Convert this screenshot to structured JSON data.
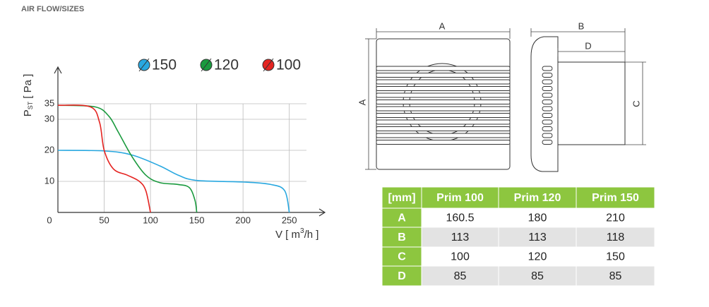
{
  "heading": "AIR FLOW/SIZES",
  "chart_data": {
    "type": "line",
    "x_label": {
      "pre": "V [ m",
      "sup": "3",
      "post": "/h ]"
    },
    "y_label": {
      "main": "P",
      "sub": "ST",
      "unit": "[ Pa ]"
    },
    "series": [
      {
        "name": "150",
        "color": "#29a8e0",
        "x": [
          0,
          50,
          80,
          110,
          130,
          150,
          200,
          230,
          245,
          250
        ],
        "values": [
          20,
          19.8,
          18.5,
          15,
          12,
          10.3,
          9.8,
          9,
          7,
          0
        ]
      },
      {
        "name": "120",
        "color": "#1a9a3e",
        "x": [
          0,
          40,
          55,
          65,
          80,
          95,
          110,
          130,
          142,
          148,
          150
        ],
        "values": [
          34.5,
          34,
          31,
          26,
          18,
          12,
          9.6,
          9,
          8,
          4,
          0
        ]
      },
      {
        "name": "100",
        "color": "#e52421",
        "x": [
          0,
          35,
          45,
          50,
          60,
          75,
          88,
          95,
          100
        ],
        "values": [
          34.5,
          34,
          29,
          20,
          14,
          12,
          10,
          7,
          0
        ]
      }
    ],
    "xlim": [
      0,
      280
    ],
    "ylim": [
      0,
      45
    ],
    "xticks": [
      0,
      50,
      100,
      150,
      200,
      250
    ],
    "yticks": [
      10,
      20,
      30,
      35
    ],
    "grid": true
  },
  "drawing": {
    "front_width": "A",
    "front_height": "A",
    "side_depth": "B",
    "body_depth": "D",
    "body_height": "C"
  },
  "table": {
    "header": [
      "[mm]",
      "Prim 100",
      "Prim 120",
      "Prim 150"
    ],
    "rows": [
      [
        "A",
        "160.5",
        "180",
        "210"
      ],
      [
        "B",
        "113",
        "113",
        "118"
      ],
      [
        "C",
        "100",
        "120",
        "150"
      ],
      [
        "D",
        "85",
        "85",
        "85"
      ]
    ]
  }
}
